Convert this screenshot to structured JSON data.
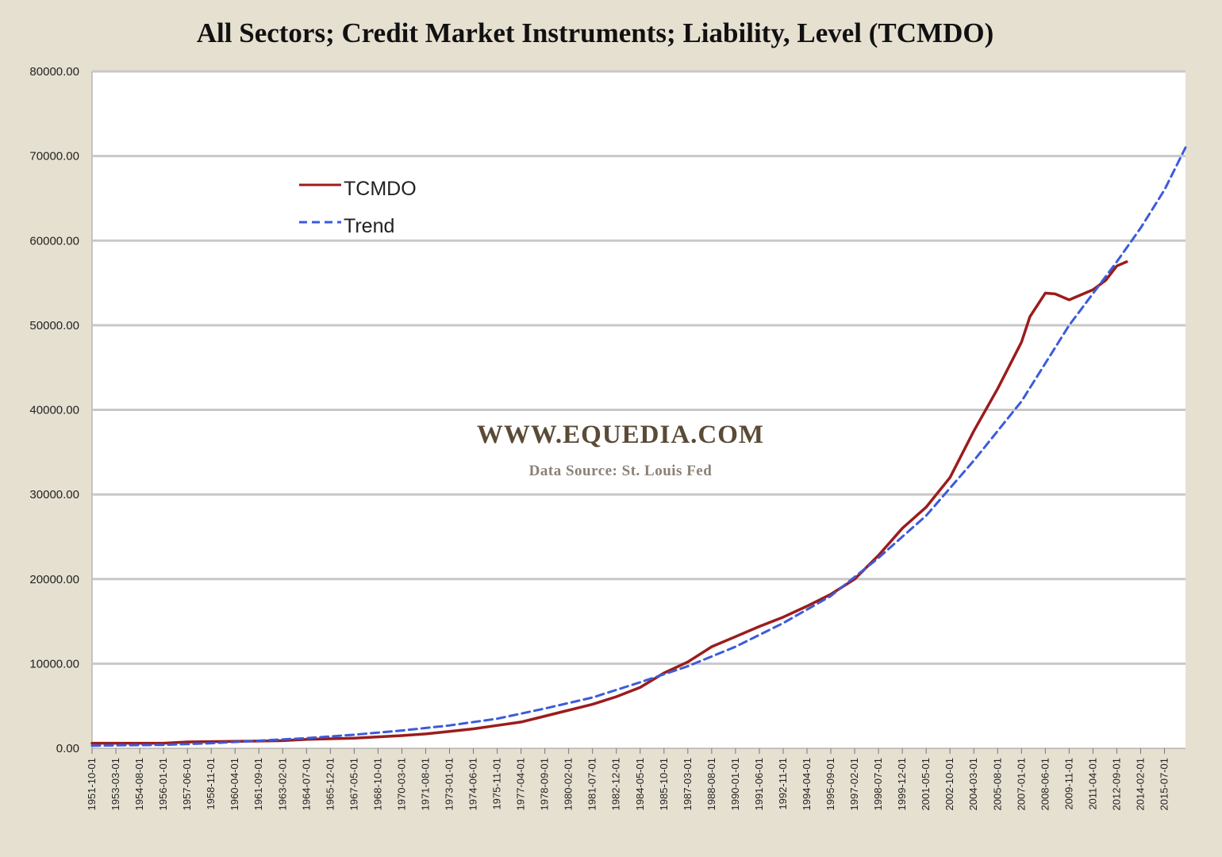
{
  "chart_data": {
    "type": "line",
    "title": "All Sectors; Credit Market Instruments; Liability, Level (TCMDO)",
    "xlabel": "",
    "ylabel": "",
    "ylim": [
      0,
      80000
    ],
    "xlim": [
      "1951-10-01",
      "2016-10-01"
    ],
    "y_ticks": [
      "0.00",
      "10000.00",
      "20000.00",
      "30000.00",
      "40000.00",
      "50000.00",
      "60000.00",
      "70000.00",
      "80000.00"
    ],
    "y_tick_values": [
      0,
      10000,
      20000,
      30000,
      40000,
      50000,
      60000,
      70000,
      80000
    ],
    "x_ticks": [
      "1951-10-01",
      "1953-03-01",
      "1954-08-01",
      "1956-01-01",
      "1957-06-01",
      "1958-11-01",
      "1960-04-01",
      "1961-09-01",
      "1963-02-01",
      "1964-07-01",
      "1965-12-01",
      "1967-05-01",
      "1968-10-01",
      "1970-03-01",
      "1971-08-01",
      "1973-01-01",
      "1974-06-01",
      "1975-11-01",
      "1977-04-01",
      "1978-09-01",
      "1980-02-01",
      "1981-07-01",
      "1982-12-01",
      "1984-05-01",
      "1985-10-01",
      "1987-03-01",
      "1988-08-01",
      "1990-01-01",
      "1991-06-01",
      "1992-11-01",
      "1994-04-01",
      "1995-09-01",
      "1997-02-01",
      "1998-07-01",
      "1999-12-01",
      "2001-05-01",
      "2002-10-01",
      "2004-03-01",
      "2005-08-01",
      "2007-01-01",
      "2008-06-01",
      "2009-11-01",
      "2011-04-01",
      "2012-09-01",
      "2014-02-01",
      "2015-07-01"
    ],
    "grid": true,
    "legend_position": "upper-left",
    "series": [
      {
        "name": "TCMDO",
        "color": "#9b1c1c",
        "style": "solid",
        "x": [
          "1951-10-01",
          "1953-03-01",
          "1956-01-01",
          "1957-06-01",
          "1961-09-01",
          "1963-02-01",
          "1964-07-01",
          "1967-05-01",
          "1968-10-01",
          "1970-03-01",
          "1971-08-01",
          "1973-01-01",
          "1974-06-01",
          "1975-11-01",
          "1977-04-01",
          "1978-09-01",
          "1980-02-01",
          "1981-07-01",
          "1982-12-01",
          "1984-05-01",
          "1985-10-01",
          "1987-03-01",
          "1988-08-01",
          "1990-01-01",
          "1991-06-01",
          "1992-11-01",
          "1994-04-01",
          "1995-09-01",
          "1997-02-01",
          "1998-07-01",
          "1999-12-01",
          "2001-05-01",
          "2002-10-01",
          "2004-03-01",
          "2005-08-01",
          "2007-01-01",
          "2007-07-01",
          "2008-06-01",
          "2009-01-01",
          "2009-11-01",
          "2011-04-01",
          "2012-01-01",
          "2012-09-01",
          "2013-04-01"
        ],
        "values": [
          600,
          600,
          600,
          750,
          850,
          900,
          1050,
          1200,
          1350,
          1500,
          1700,
          2000,
          2300,
          2700,
          3100,
          3800,
          4500,
          5200,
          6100,
          7200,
          8900,
          10200,
          12000,
          13200,
          14400,
          15500,
          16800,
          18200,
          20000,
          22800,
          26000,
          28500,
          32000,
          37500,
          42500,
          48000,
          51000,
          53800,
          53700,
          53000,
          54200,
          55300,
          57000,
          57500
        ]
      },
      {
        "name": "Trend",
        "color": "#3b5bdb",
        "style": "dashed",
        "x": [
          "1951-10-01",
          "1953-03-01",
          "1956-01-01",
          "1958-11-01",
          "1961-09-01",
          "1964-07-01",
          "1967-05-01",
          "1970-03-01",
          "1973-01-01",
          "1975-11-01",
          "1978-09-01",
          "1981-07-01",
          "1984-05-01",
          "1987-03-01",
          "1990-01-01",
          "1992-11-01",
          "1995-09-01",
          "1998-07-01",
          "2001-05-01",
          "2004-03-01",
          "2007-01-01",
          "2009-11-01",
          "2012-09-01",
          "2014-02-01",
          "2015-07-01",
          "2016-10-01"
        ],
        "values": [
          300,
          350,
          400,
          600,
          900,
          1200,
          1600,
          2100,
          2700,
          3500,
          4700,
          6000,
          7800,
          9700,
          12000,
          14800,
          18000,
          22500,
          27500,
          34000,
          41000,
          50000,
          57500,
          61500,
          66000,
          71000
        ]
      }
    ]
  }
}
